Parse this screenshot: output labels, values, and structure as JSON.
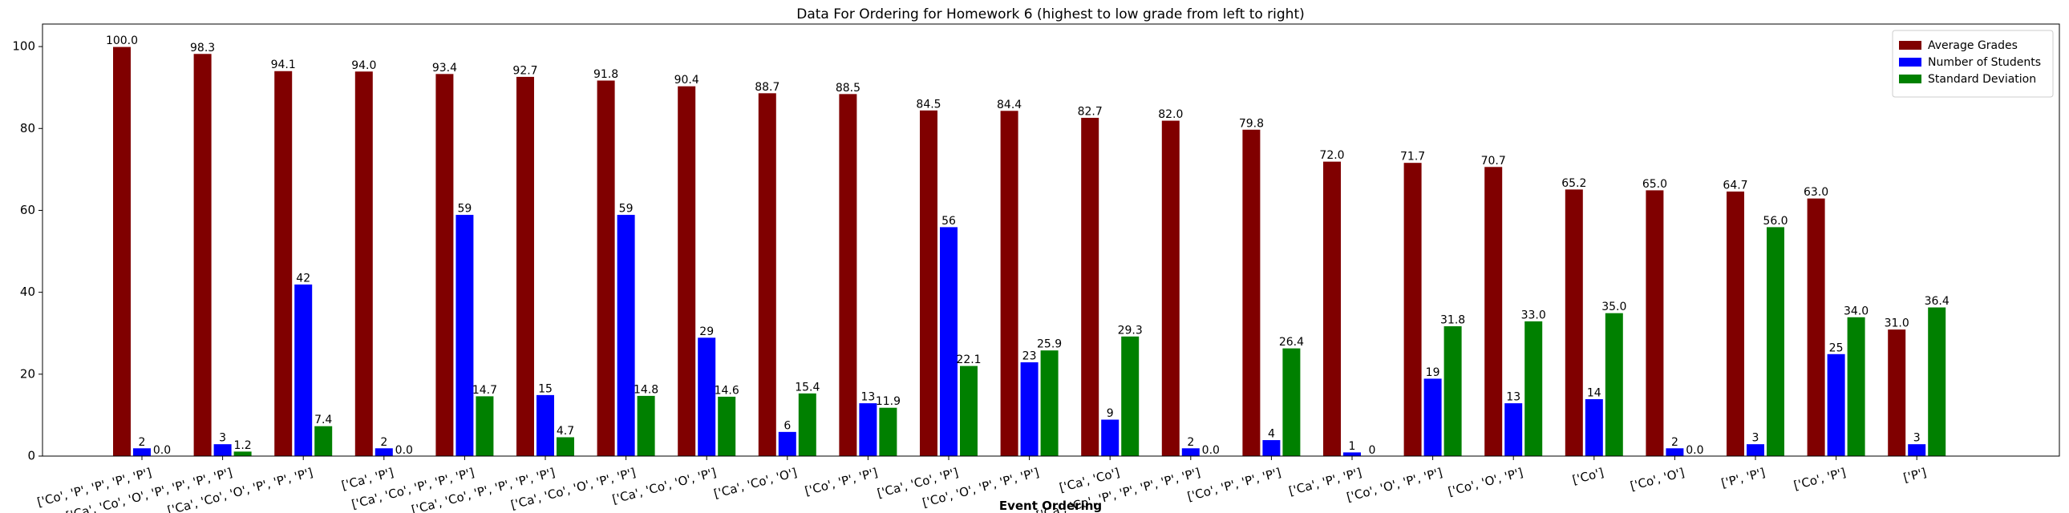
{
  "chart_data": {
    "type": "bar",
    "title": "Data For Ordering for Homework 6 (highest to low grade from left to right)",
    "x_label": "Event Ordering",
    "categories": [
      "['Co', 'P', 'P', 'P', 'P']",
      "['Ca', 'Co', 'O', 'P', 'P', 'P', 'P']",
      "['Ca', 'Co', 'O', 'P', 'P', 'P']",
      "['Ca', 'P']",
      "['Ca', 'Co', 'P', 'P', 'P']",
      "['Ca', 'Co', 'P', 'P', 'P', 'P']",
      "['Ca', 'Co', 'O', 'P', 'P']",
      "['Ca', 'Co', 'O', 'P']",
      "['Ca', 'Co', 'O']",
      "['Co', 'P', 'P']",
      "['Ca', 'Co', 'P']",
      "['Co', 'O', 'P', 'P', 'P']",
      "['Ca', 'Co']",
      "['Ca', 'Co', 'P', 'P', 'P', 'P', 'P']",
      "['Co', 'P', 'P', 'P']",
      "['Ca', 'P', 'P']",
      "['Co', 'O', 'P', 'P']",
      "['Co', 'O', 'P']",
      "['Co']",
      "['Co', 'O']",
      "['P', 'P']",
      "['Co', 'P']",
      "['P']"
    ],
    "series": [
      {
        "name": "Average Grades",
        "color": "#800000",
        "values": [
          100.0,
          98.3,
          94.1,
          94.0,
          93.4,
          92.7,
          91.8,
          90.4,
          88.7,
          88.5,
          84.5,
          84.4,
          82.7,
          82.0,
          79.8,
          72.0,
          71.7,
          70.7,
          65.2,
          65.0,
          64.7,
          63.0,
          31.0
        ],
        "value_labels": [
          "100.0",
          "98.3",
          "94.1",
          "94.0",
          "93.4",
          "92.7",
          "91.8",
          "90.4",
          "88.7",
          "88.5",
          "84.5",
          "84.4",
          "82.7",
          "82.0",
          "79.8",
          "72.0",
          "71.7",
          "70.7",
          "65.2",
          "65.0",
          "64.7",
          "63.0",
          "31.0"
        ]
      },
      {
        "name": "Number of Students",
        "color": "#0000ff",
        "values": [
          2,
          3,
          42,
          2,
          59,
          15,
          59,
          29,
          6,
          13,
          56,
          23,
          9,
          2,
          4,
          1,
          19,
          13,
          14,
          2,
          3,
          25,
          3
        ],
        "value_labels": [
          "2",
          "3",
          "42",
          "2",
          "59",
          "15",
          "59",
          "29",
          "6",
          "13",
          "56",
          "23",
          "9",
          "2",
          "4",
          "1",
          "19",
          "13",
          "14",
          "2",
          "3",
          "25",
          "3"
        ]
      },
      {
        "name": "Standard Deviation",
        "color": "#008000",
        "values": [
          0.0,
          1.2,
          7.4,
          0.0,
          14.7,
          4.7,
          14.8,
          14.6,
          15.4,
          11.9,
          22.1,
          25.9,
          29.3,
          0.0,
          26.4,
          0,
          31.8,
          33.0,
          35.0,
          0.0,
          56.0,
          34.0,
          36.4
        ],
        "value_labels": [
          "0.0",
          "1.2",
          "7.4",
          "0.0",
          "14.7",
          "4.7",
          "14.8",
          "14.6",
          "15.4",
          "11.9",
          "22.1",
          "25.9",
          "29.3",
          "0.0",
          "26.4",
          "0",
          "31.8",
          "33.0",
          "35.0",
          "0.0",
          "56.0",
          "34.0",
          "36.4"
        ]
      }
    ],
    "ylim": [
      0,
      105.5
    ],
    "yticks": [
      0,
      20,
      40,
      60,
      80,
      100
    ],
    "legend": "upper right"
  }
}
